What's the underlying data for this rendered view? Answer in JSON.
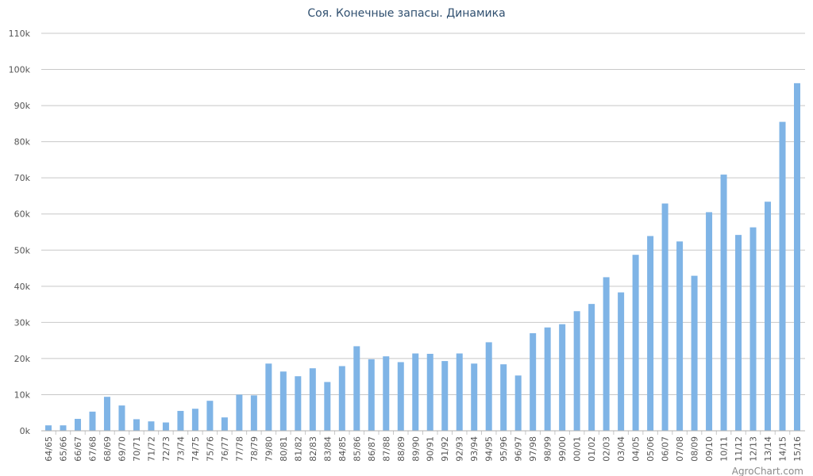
{
  "chart_data": {
    "type": "bar",
    "title": "Соя. Конечные запасы. Динамика",
    "xlabel": "",
    "ylabel": "",
    "ylim": [
      0,
      110000
    ],
    "yticks": [
      "0k",
      "10k",
      "20k",
      "30k",
      "40k",
      "50k",
      "60k",
      "70k",
      "80k",
      "90k",
      "100k",
      "110k"
    ],
    "grid": true,
    "categories": [
      "64/65",
      "65/66",
      "66/67",
      "67/68",
      "68/69",
      "69/70",
      "70/71",
      "71/72",
      "72/73",
      "73/74",
      "74/75",
      "75/76",
      "76/77",
      "77/78",
      "78/79",
      "79/80",
      "80/81",
      "81/82",
      "82/83",
      "83/84",
      "84/85",
      "85/86",
      "86/87",
      "87/88",
      "88/89",
      "89/90",
      "90/91",
      "91/92",
      "92/93",
      "93/94",
      "94/95",
      "95/96",
      "96/97",
      "97/98",
      "98/99",
      "99/00",
      "00/01",
      "01/02",
      "02/03",
      "03/04",
      "04/05",
      "05/06",
      "06/07",
      "07/08",
      "08/09",
      "09/10",
      "10/11",
      "11/12",
      "12/13",
      "13/14",
      "14/15",
      "15/16"
    ],
    "values": [
      1500,
      1500,
      3300,
      5300,
      9400,
      7000,
      3200,
      2600,
      2300,
      5500,
      6100,
      8300,
      3700,
      10000,
      9800,
      18600,
      16400,
      15100,
      17300,
      13500,
      17900,
      23400,
      19800,
      20600,
      19000,
      21400,
      21300,
      19300,
      21400,
      18600,
      24500,
      18400,
      15300,
      27000,
      28600,
      29500,
      33100,
      35100,
      42500,
      38300,
      48700,
      53900,
      62900,
      52400,
      42900,
      60500,
      70900,
      54200,
      56300,
      63400,
      85500,
      96200
    ],
    "bar_color": "#7fb4e6",
    "grid_color": "#c8c8c8",
    "credit": "AgroChart.com"
  }
}
